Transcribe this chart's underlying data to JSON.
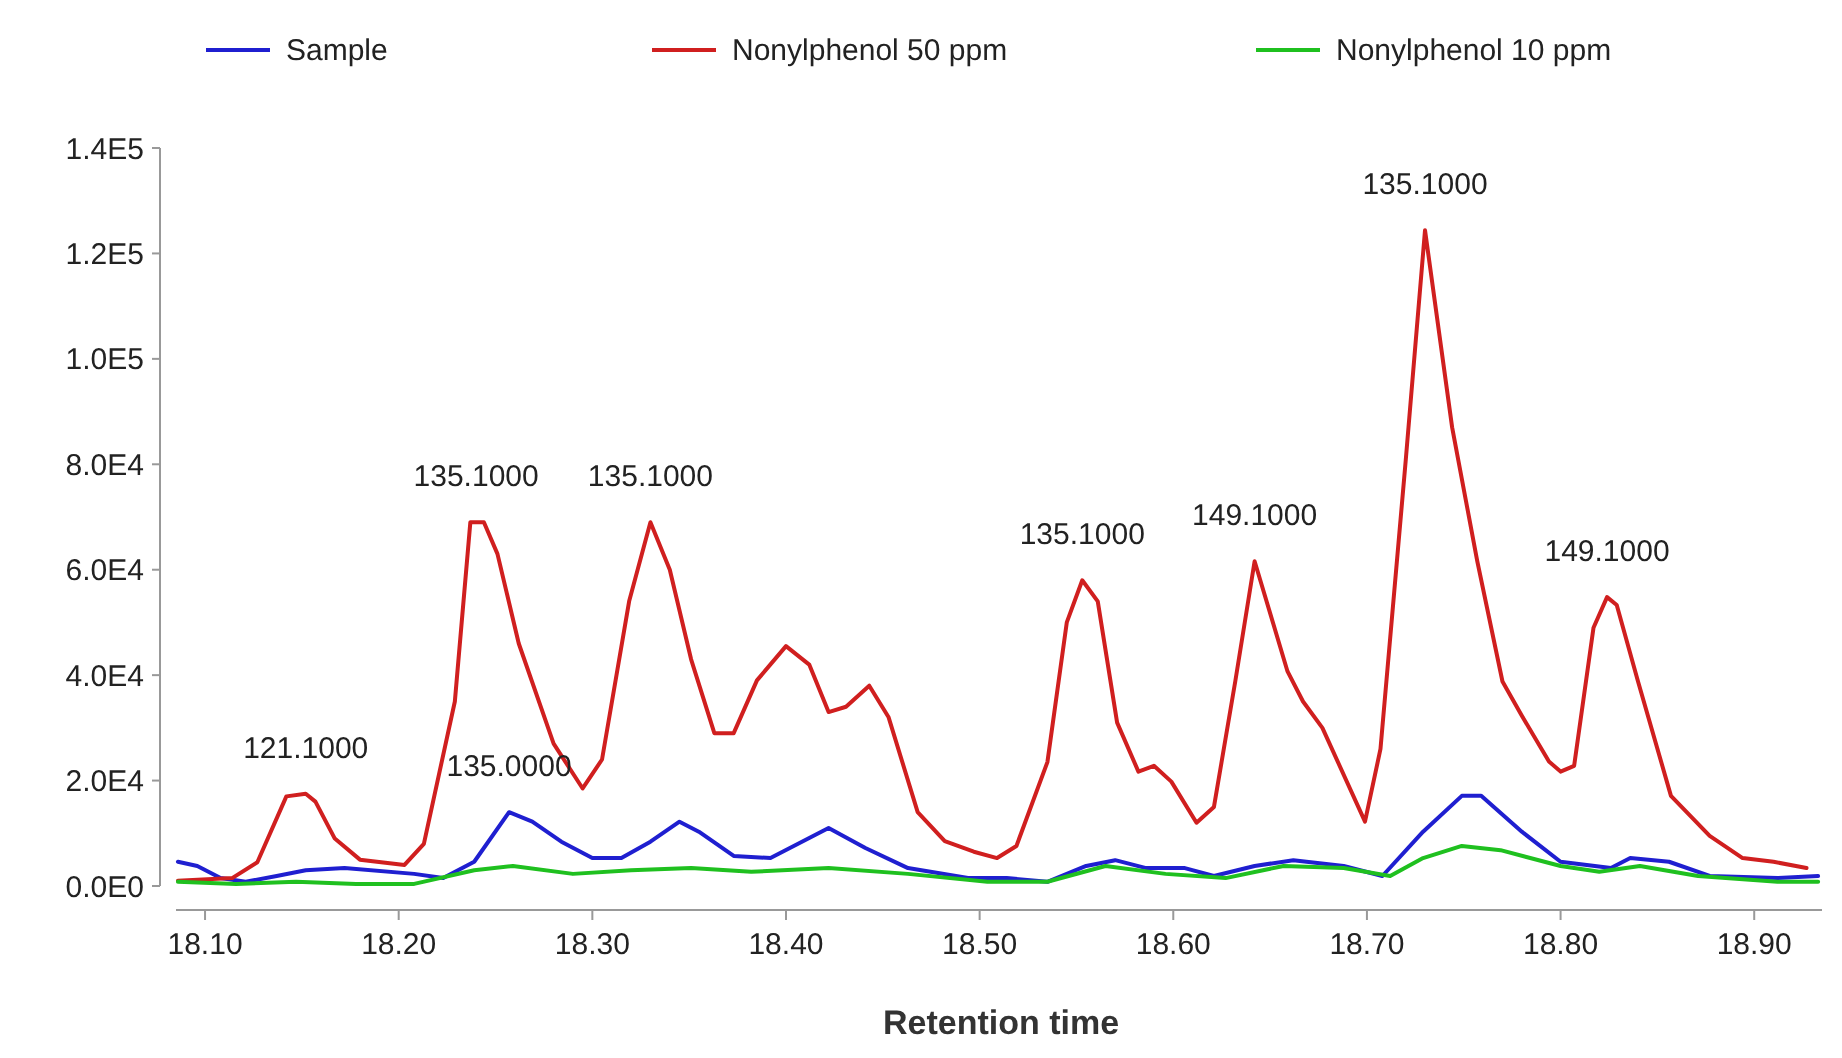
{
  "chart_data": {
    "type": "line",
    "xlabel": "Retention time",
    "legend": "top",
    "grid": false,
    "marker": "none",
    "line_style": "solid",
    "xlim": [
      18.085,
      18.935
    ],
    "ylim": [
      0,
      140000
    ],
    "xticks": [
      {
        "value": 18.1,
        "label": "18.10"
      },
      {
        "value": 18.2,
        "label": "18.20"
      },
      {
        "value": 18.3,
        "label": "18.30"
      },
      {
        "value": 18.4,
        "label": "18.40"
      },
      {
        "value": 18.5,
        "label": "18.50"
      },
      {
        "value": 18.6,
        "label": "18.60"
      },
      {
        "value": 18.7,
        "label": "18.70"
      },
      {
        "value": 18.8,
        "label": "18.80"
      },
      {
        "value": 18.9,
        "label": "18.90"
      }
    ],
    "yticks": [
      {
        "value": 0,
        "label": "0.0E0"
      },
      {
        "value": 20000,
        "label": "2.0E4"
      },
      {
        "value": 40000,
        "label": "4.0E4"
      },
      {
        "value": 60000,
        "label": "6.0E4"
      },
      {
        "value": 80000,
        "label": "8.0E4"
      },
      {
        "value": 100000,
        "label": "1.0E5"
      },
      {
        "value": 120000,
        "label": "1.2E5"
      },
      {
        "value": 140000,
        "label": "1.4E5"
      }
    ],
    "series": [
      {
        "name": "Sample",
        "color": "#1f1fd0",
        "x": [
          18.086,
          18.096,
          18.108,
          18.121,
          18.137,
          18.152,
          18.172,
          18.208,
          18.223,
          18.239,
          18.257,
          18.269,
          18.284,
          18.3,
          18.315,
          18.33,
          18.345,
          18.355,
          18.373,
          18.392,
          18.412,
          18.422,
          18.441,
          18.463,
          18.494,
          18.514,
          18.535,
          18.555,
          18.57,
          18.586,
          18.606,
          18.621,
          18.642,
          18.662,
          18.688,
          18.708,
          18.729,
          18.749,
          18.759,
          18.78,
          18.8,
          18.826,
          18.836,
          18.856,
          18.877,
          18.912,
          18.933
        ],
        "values": [
          4600,
          3800,
          1500,
          800,
          1900,
          3000,
          3400,
          2300,
          1500,
          4600,
          14000,
          12200,
          8400,
          5300,
          5300,
          8400,
          12200,
          10300,
          5700,
          5300,
          9100,
          11000,
          7200,
          3400,
          1500,
          1500,
          800,
          3800,
          4900,
          3400,
          3400,
          1900,
          3800,
          4900,
          3800,
          1900,
          10300,
          17100,
          17100,
          10300,
          4600,
          3400,
          5300,
          4600,
          1900,
          1500,
          1900
        ]
      },
      {
        "name": "Nonylphenol 50 ppm",
        "color": "#d01f1f",
        "x": [
          18.086,
          18.114,
          18.127,
          18.142,
          18.152,
          18.157,
          18.167,
          18.18,
          18.203,
          18.213,
          18.229,
          18.237,
          18.244,
          18.251,
          18.262,
          18.28,
          18.295,
          18.305,
          18.319,
          18.33,
          18.34,
          18.351,
          18.363,
          18.373,
          18.385,
          18.4,
          18.412,
          18.422,
          18.431,
          18.443,
          18.453,
          18.468,
          18.482,
          18.497,
          18.509,
          18.519,
          18.535,
          18.545,
          18.553,
          18.561,
          18.571,
          18.582,
          18.59,
          18.599,
          18.612,
          18.621,
          18.632,
          18.642,
          18.659,
          18.667,
          18.677,
          18.699,
          18.707,
          18.72,
          18.73,
          18.744,
          18.757,
          18.77,
          18.78,
          18.794,
          18.8,
          18.807,
          18.817,
          18.824,
          18.829,
          18.84,
          18.857,
          18.877,
          18.894,
          18.91,
          18.927
        ],
        "values": [
          1000,
          1500,
          4500,
          17000,
          17500,
          16000,
          9000,
          5000,
          4000,
          8000,
          35000,
          69000,
          69000,
          63000,
          46000,
          27000,
          18500,
          24000,
          54000,
          69000,
          60000,
          43000,
          29000,
          29000,
          39000,
          45500,
          42000,
          33000,
          34000,
          38000,
          32000,
          14000,
          8500,
          6500,
          5300,
          7600,
          23500,
          50000,
          58000,
          54000,
          31000,
          21700,
          22800,
          19800,
          12000,
          15000,
          38800,
          61600,
          40700,
          35000,
          30000,
          12200,
          26000,
          80600,
          124400,
          87000,
          61600,
          38800,
          32300,
          23600,
          21700,
          22800,
          49000,
          54800,
          53300,
          38800,
          17100,
          9500,
          5300,
          4600,
          3400
        ]
      },
      {
        "name": "Nonylphenol 10 ppm",
        "color": "#1fc01f",
        "x": [
          18.086,
          18.116,
          18.147,
          18.178,
          18.208,
          18.239,
          18.259,
          18.29,
          18.32,
          18.351,
          18.382,
          18.422,
          18.463,
          18.504,
          18.535,
          18.565,
          18.596,
          18.627,
          18.657,
          18.688,
          18.712,
          18.729,
          18.749,
          18.769,
          18.8,
          18.82,
          18.841,
          18.871,
          18.912,
          18.933
        ],
        "values": [
          800,
          400,
          800,
          400,
          400,
          3000,
          3800,
          2300,
          3000,
          3400,
          2700,
          3400,
          2300,
          800,
          800,
          3800,
          2300,
          1500,
          3800,
          3400,
          1900,
          5300,
          7600,
          6800,
          3800,
          2700,
          3800,
          1900,
          800,
          800
        ]
      }
    ],
    "annotations": [
      {
        "text": "121.1000",
        "x": 18.152,
        "y": 17500
      },
      {
        "text": "135.1000",
        "x": 18.24,
        "y": 69000
      },
      {
        "text": "135.0000",
        "x": 18.257,
        "y": 14000
      },
      {
        "text": "135.1000",
        "x": 18.33,
        "y": 69000
      },
      {
        "text": "135.1000",
        "x": 18.553,
        "y": 58000
      },
      {
        "text": "149.1000",
        "x": 18.642,
        "y": 61600
      },
      {
        "text": "135.1000",
        "x": 18.73,
        "y": 124400
      },
      {
        "text": "149.1000",
        "x": 18.824,
        "y": 54800
      }
    ]
  }
}
